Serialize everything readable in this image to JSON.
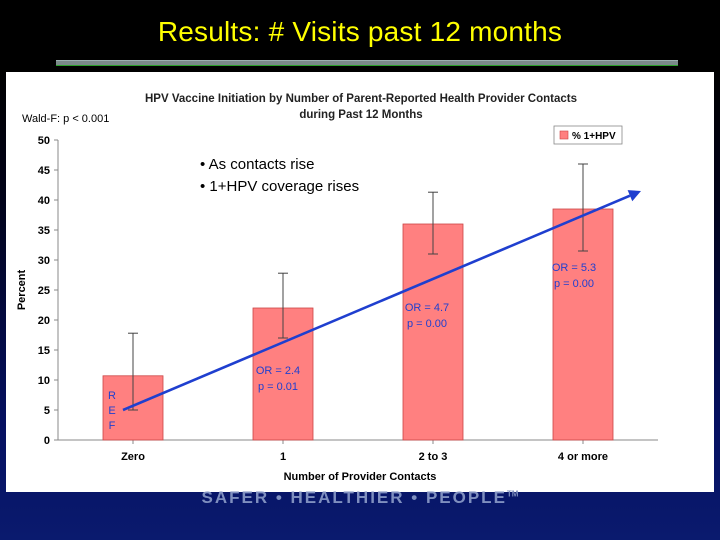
{
  "slide": {
    "title": "Results: # Visits past 12 months",
    "footer": "SAFER • HEALTHIER • PEOPLE",
    "footer_mark": "TM"
  },
  "colors": {
    "title": "#ffff00",
    "bar_fill": "#ff8080",
    "bar_stroke": "#cc4444",
    "trend_arrow": "#1f3fcf",
    "annotation_text": "#1f3fcf"
  },
  "chart_data": {
    "type": "bar",
    "title_line1": "HPV Vaccine Initiation by Number of Parent-Reported Health Provider Contacts",
    "title_line2": "during Past 12 Months",
    "xlabel": "Number of Provider Contacts",
    "ylabel": "Percent",
    "ylim": [
      0,
      50
    ],
    "yticks": [
      0,
      5,
      10,
      15,
      20,
      25,
      30,
      35,
      40,
      45,
      50
    ],
    "grid": false,
    "legend": {
      "position": "top-right",
      "label": "% 1+HPV"
    },
    "categories": [
      "Zero",
      "1",
      "2 to 3",
      "4 or more"
    ],
    "series": [
      {
        "name": "% 1+HPV",
        "values": [
          10.7,
          22.0,
          36.0,
          38.5
        ],
        "error_low": [
          5.0,
          17.0,
          31.0,
          31.5
        ],
        "error_high": [
          17.8,
          27.8,
          41.3,
          46.0
        ]
      }
    ],
    "annotations": {
      "wald": "Wald-F: p < 0.001",
      "callout_line1": "• As contacts rise",
      "callout_line2": "• 1+HPV coverage rises",
      "ref_letters": [
        "R",
        "E",
        "F"
      ],
      "odds": [
        {
          "category": "1",
          "or": "OR = 2.4",
          "p": "p = 0.01"
        },
        {
          "category": "2 to 3",
          "or": "OR = 4.7",
          "p": "p = 0.00"
        },
        {
          "category": "4 or more",
          "or": "OR = 5.3",
          "p": "p = 0.00"
        }
      ]
    },
    "trend": {
      "from_y": 5.0,
      "to_y": 41.5
    }
  }
}
